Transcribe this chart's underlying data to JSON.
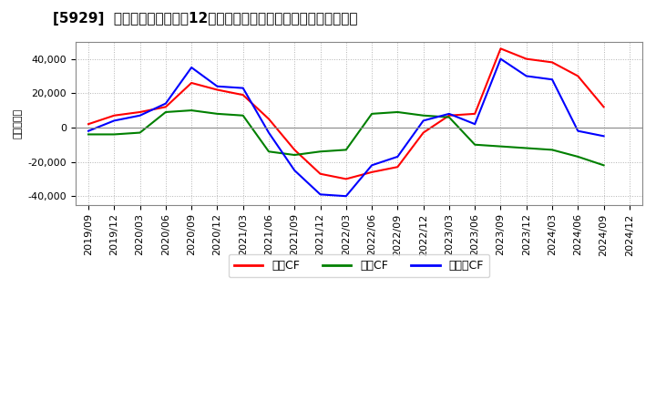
{
  "title": "[5929]  キャッシュフローの12か月移動合計の対前年同期増減額の推移",
  "ylabel": "（百万円）",
  "background_color": "#ffffff",
  "plot_bg_color": "#ffffff",
  "grid_color": "#aaaaaa",
  "ylim": [
    -45000,
    50000
  ],
  "yticks": [
    -40000,
    -20000,
    0,
    20000,
    40000
  ],
  "x_labels": [
    "2019/09",
    "2019/12",
    "2020/03",
    "2020/06",
    "2020/09",
    "2020/12",
    "2021/03",
    "2021/06",
    "2021/09",
    "2021/12",
    "2022/03",
    "2022/06",
    "2022/09",
    "2022/12",
    "2023/03",
    "2023/06",
    "2023/09",
    "2023/12",
    "2024/03",
    "2024/06",
    "2024/09",
    "2024/12"
  ],
  "series": {
    "営業CF": {
      "color": "#ff0000",
      "values": [
        2000,
        7000,
        9000,
        12000,
        26000,
        22000,
        19000,
        5000,
        -13000,
        -27000,
        -30000,
        -26000,
        -23000,
        -3000,
        7000,
        8000,
        46000,
        40000,
        38000,
        30000,
        12000,
        null
      ]
    },
    "投資CF": {
      "color": "#008000",
      "values": [
        -4000,
        -4000,
        -3000,
        9000,
        10000,
        8000,
        7000,
        -14000,
        -16000,
        -14000,
        -13000,
        8000,
        9000,
        7000,
        6000,
        -10000,
        -11000,
        -12000,
        -13000,
        -17000,
        -22000,
        null
      ]
    },
    "フリーCF": {
      "color": "#0000ff",
      "values": [
        -2000,
        4000,
        7000,
        14000,
        35000,
        24000,
        23000,
        -3000,
        -25000,
        -39000,
        -40000,
        -22000,
        -17000,
        4000,
        8000,
        2000,
        40000,
        30000,
        28000,
        -2000,
        -5000,
        null
      ]
    }
  },
  "legend_entries": [
    "営業CF",
    "投資CF",
    "フリーCF"
  ],
  "legend_colors": [
    "#ff0000",
    "#008000",
    "#0000ff"
  ],
  "title_fontsize": 11,
  "axis_fontsize": 8,
  "legend_fontsize": 9,
  "line_width": 1.5
}
